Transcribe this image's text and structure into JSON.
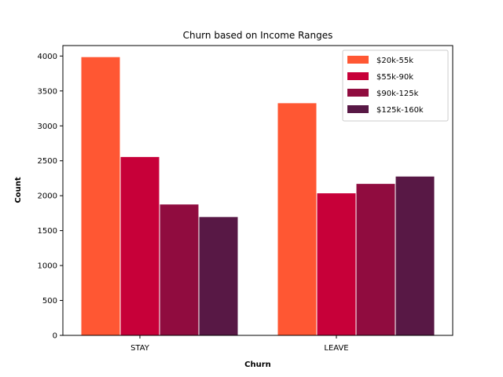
{
  "chart_data": {
    "type": "bar",
    "title": "Churn based on Income Ranges",
    "xlabel": "Churn",
    "ylabel": "Count",
    "categories": [
      "STAY",
      "LEAVE"
    ],
    "ylim": [
      0,
      4150
    ],
    "yticks": [
      0,
      500,
      1000,
      1500,
      2000,
      2500,
      3000,
      3500,
      4000
    ],
    "grid": false,
    "legend_position": "top-right",
    "series": [
      {
        "name": "$20k-55k",
        "color": "#FF5733",
        "values": [
          3990,
          3330
        ]
      },
      {
        "name": "$55k-90k",
        "color": "#C70039",
        "values": [
          2560,
          2040
        ]
      },
      {
        "name": "$90k-125k",
        "color": "#900C3F",
        "values": [
          1880,
          2175
        ]
      },
      {
        "name": "$125k-160k",
        "color": "#581845",
        "values": [
          1700,
          2280
        ]
      }
    ]
  }
}
